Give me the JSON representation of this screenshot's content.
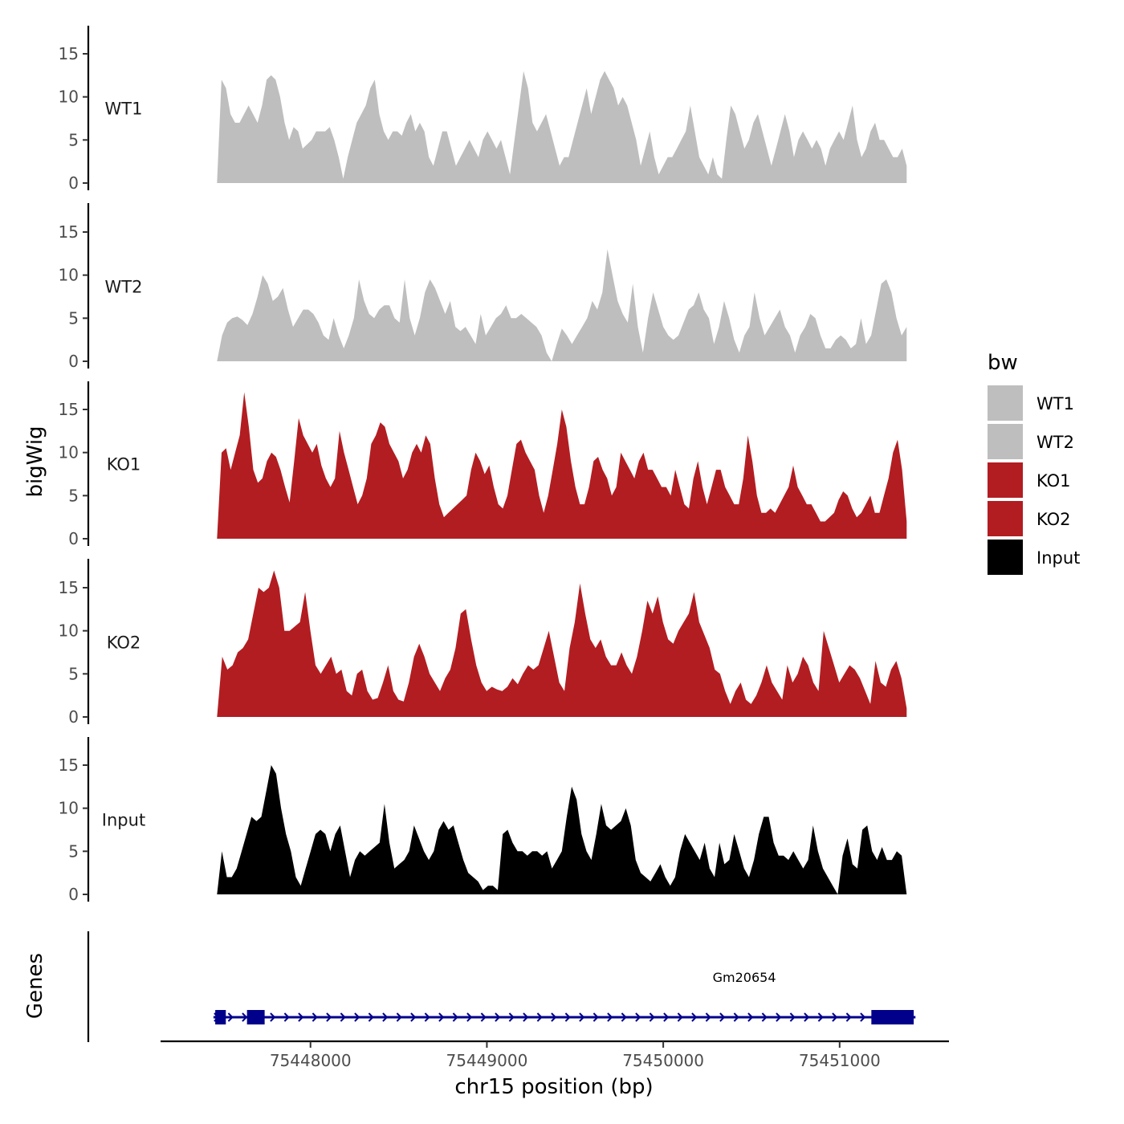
{
  "chart_data": {
    "type": "area",
    "title": "",
    "xlabel": "chr15 position (bp)",
    "ylabel": "bigWig",
    "gene_panel_label": "Genes",
    "xlim": [
      75447150,
      75451620
    ],
    "data_xrange": [
      75447470,
      75451380
    ],
    "ylim": [
      0,
      18
    ],
    "x_ticks": [
      75448000,
      75449000,
      75450000,
      75451000
    ],
    "x_tick_labels": [
      "75448000",
      "75449000",
      "75450000",
      "75451000"
    ],
    "y_ticks": [
      0,
      5,
      10,
      15
    ],
    "y_tick_labels": [
      "0",
      "5",
      "10",
      "15"
    ],
    "legend": {
      "title": "bw",
      "entries": [
        {
          "name": "WT1",
          "color": "#bebebe"
        },
        {
          "name": "WT2",
          "color": "#bebebe"
        },
        {
          "name": "KO1",
          "color": "#b21d21"
        },
        {
          "name": "KO2",
          "color": "#b21d21"
        },
        {
          "name": "Input",
          "color": "#000000"
        }
      ]
    },
    "series": [
      {
        "name": "WT1",
        "label": "WT1",
        "color": "#bebebe",
        "values": [
          0,
          12,
          11,
          8,
          7,
          7,
          8,
          9,
          8,
          7,
          9,
          12,
          12.5,
          12,
          10,
          7,
          5,
          6.5,
          6,
          4,
          4.5,
          5,
          6,
          6,
          6,
          6.5,
          5,
          3,
          0.5,
          3,
          5,
          7,
          8,
          9,
          11,
          12,
          8,
          6,
          5,
          6,
          6,
          5.5,
          7,
          8,
          6,
          7,
          6,
          3,
          2,
          4,
          6,
          6,
          4,
          2,
          3,
          4,
          5,
          4,
          3,
          5,
          6,
          5,
          4,
          5,
          3,
          1,
          5,
          9,
          13,
          11,
          7,
          6,
          7,
          8,
          6,
          4,
          2,
          3,
          3,
          5,
          7,
          9,
          11,
          8,
          10,
          12,
          13,
          12,
          11,
          9,
          10,
          9,
          7,
          5,
          2,
          4,
          6,
          3,
          1,
          2,
          3,
          3,
          4,
          5,
          6,
          9,
          6,
          3,
          2,
          1,
          3,
          1,
          0.5,
          5,
          9,
          8,
          6,
          4,
          5,
          7,
          8,
          6,
          4,
          2,
          4,
          6,
          8,
          6,
          3,
          5,
          6,
          5,
          4,
          5,
          4,
          2,
          4,
          5,
          6,
          5,
          7,
          9,
          5,
          3,
          4,
          6,
          7,
          5,
          5,
          4,
          3,
          3,
          4,
          2
        ]
      },
      {
        "name": "WT2",
        "label": "WT2",
        "color": "#bebebe",
        "values": [
          0,
          3,
          4.5,
          5,
          5.2,
          4.8,
          4.2,
          5.5,
          7.5,
          10,
          9,
          7,
          7.5,
          8.5,
          6,
          4,
          5,
          6,
          6,
          5.5,
          4.5,
          3,
          2.5,
          5,
          3,
          1.5,
          3,
          5,
          9.5,
          7,
          5.5,
          5,
          6,
          6.5,
          6.5,
          5,
          4.5,
          9.5,
          5,
          3,
          5,
          8,
          9.5,
          8.5,
          7,
          5.5,
          7,
          4,
          3.5,
          4,
          3,
          2,
          5.5,
          3,
          4,
          5,
          5.5,
          6.5,
          5,
          5,
          5.5,
          5,
          4.5,
          4,
          3,
          1,
          0,
          2,
          3.8,
          3,
          2,
          3,
          4,
          5,
          7,
          6,
          8,
          13,
          10,
          7,
          5.5,
          4.5,
          9,
          4,
          1,
          5,
          8,
          6,
          4,
          3,
          2.5,
          3,
          4.5,
          6,
          6.5,
          8,
          6,
          5,
          2,
          4,
          7,
          5,
          2.5,
          1,
          3,
          4,
          8,
          5,
          3,
          4,
          5,
          6,
          4,
          3,
          1,
          3,
          4,
          5.5,
          5,
          3,
          1.5,
          1.5,
          2.5,
          3,
          2.5,
          1.5,
          2,
          5,
          2,
          3,
          6,
          9,
          9.5,
          8,
          5,
          3,
          4
        ]
      },
      {
        "name": "KO1",
        "label": "KO1",
        "color": "#b21d21",
        "values": [
          0,
          10,
          10.5,
          8,
          10,
          12,
          17,
          13,
          8,
          6.5,
          7,
          9,
          10,
          9.5,
          8,
          6,
          4.2,
          9,
          14,
          12,
          11,
          10,
          11,
          8.5,
          7,
          6,
          7,
          12.5,
          10,
          8,
          6,
          4,
          5,
          7,
          11,
          12,
          13.5,
          13,
          11,
          10,
          9,
          7,
          8,
          10,
          11,
          10,
          12,
          11,
          7,
          4,
          2.5,
          3,
          3.5,
          4,
          4.5,
          5,
          8,
          10,
          9,
          7.5,
          8.5,
          6,
          4,
          3.5,
          5,
          8,
          11,
          11.5,
          10,
          9,
          8,
          5,
          3,
          5,
          8,
          11,
          15,
          13,
          9,
          6,
          4,
          4,
          6,
          9,
          9.5,
          8,
          7,
          5,
          6,
          10,
          9,
          8,
          7,
          9,
          10,
          8,
          8,
          7,
          6,
          6,
          5,
          8,
          6,
          4,
          3.5,
          7,
          9,
          6,
          4,
          6,
          8,
          8,
          6,
          5,
          4,
          4,
          7,
          12,
          9,
          5,
          3,
          3,
          3.5,
          3,
          4,
          5,
          6,
          8.5,
          6,
          5,
          4,
          4,
          3,
          2,
          2,
          2.5,
          3,
          4.5,
          5.5,
          5,
          3.5,
          2.5,
          3,
          4,
          5,
          3,
          3,
          5,
          7,
          10,
          11.5,
          8,
          2
        ]
      },
      {
        "name": "KO2",
        "label": "KO2",
        "color": "#b21d21",
        "values": [
          0,
          7,
          5.5,
          6,
          7.5,
          8,
          9,
          12,
          15,
          14.5,
          15,
          17,
          15,
          10,
          10,
          10.5,
          11,
          14.5,
          10,
          6,
          5,
          6,
          7,
          5,
          5.5,
          3,
          2.5,
          5,
          5.5,
          3,
          2,
          2.2,
          4,
          6,
          3,
          2,
          1.8,
          4,
          7,
          8.5,
          7,
          5,
          4,
          3,
          4.5,
          5.5,
          8,
          12,
          12.5,
          9,
          6,
          4,
          3,
          3.5,
          3.2,
          3,
          3.5,
          4.5,
          3.8,
          5,
          6,
          5.5,
          6,
          8,
          10,
          7,
          4,
          3,
          8,
          11,
          15.5,
          12,
          9,
          8,
          9,
          7,
          6,
          6,
          7.5,
          6,
          5,
          7,
          10,
          13.5,
          12,
          14,
          11,
          9,
          8.5,
          10,
          11,
          12,
          14.5,
          11,
          9.5,
          8,
          5.5,
          5,
          3,
          1.5,
          3,
          4,
          2,
          1.5,
          2.5,
          4,
          6,
          4,
          3,
          2,
          6,
          4,
          5,
          7,
          6,
          4,
          3,
          10,
          8,
          6,
          4,
          5,
          6,
          5.5,
          4.5,
          3,
          1.5,
          6.5,
          4,
          3.5,
          5.5,
          6.5,
          4.5,
          1
        ]
      },
      {
        "name": "Input",
        "label": "Input",
        "color": "#000000",
        "values": [
          0,
          5,
          2,
          2,
          3,
          5,
          7,
          9,
          8.5,
          9,
          12,
          15,
          14,
          10,
          7,
          5,
          2,
          1,
          3,
          5,
          7,
          7.5,
          7,
          5,
          7,
          8,
          5,
          2,
          4,
          5,
          4.5,
          5,
          5.5,
          6,
          10.5,
          6,
          3,
          3.5,
          4,
          5,
          8,
          6.5,
          5,
          4,
          5,
          7.5,
          8.5,
          7.5,
          8,
          6,
          4,
          2.5,
          2,
          1.5,
          0.5,
          1,
          1,
          0.5,
          7,
          7.5,
          6,
          5,
          5,
          4.5,
          5,
          5,
          4.5,
          5,
          3,
          4,
          5,
          9,
          12.5,
          11,
          7,
          5,
          4,
          7,
          10.5,
          8,
          7.5,
          8,
          8.5,
          10,
          8,
          4,
          2.5,
          2,
          1.5,
          2.5,
          3.5,
          2,
          1,
          2,
          5,
          7,
          6,
          5,
          4,
          6,
          3,
          2,
          6,
          3.5,
          4,
          7,
          5,
          3,
          2,
          4,
          7,
          9,
          9,
          6,
          4.5,
          4.5,
          4,
          5,
          4,
          3,
          4,
          8,
          5,
          3,
          2,
          1,
          0,
          4.5,
          6.5,
          3.5,
          3,
          7.5,
          8,
          5,
          4,
          5.5,
          4,
          4,
          5,
          4.5,
          0
        ]
      }
    ],
    "genes": [
      {
        "name": "Gm20654",
        "start": 75447450,
        "end": 75451430,
        "strand": "+",
        "color": "#00008b",
        "exons": [
          [
            75447460,
            75447520
          ],
          [
            75447640,
            75447740
          ],
          [
            75451180,
            75451420
          ]
        ]
      }
    ]
  }
}
